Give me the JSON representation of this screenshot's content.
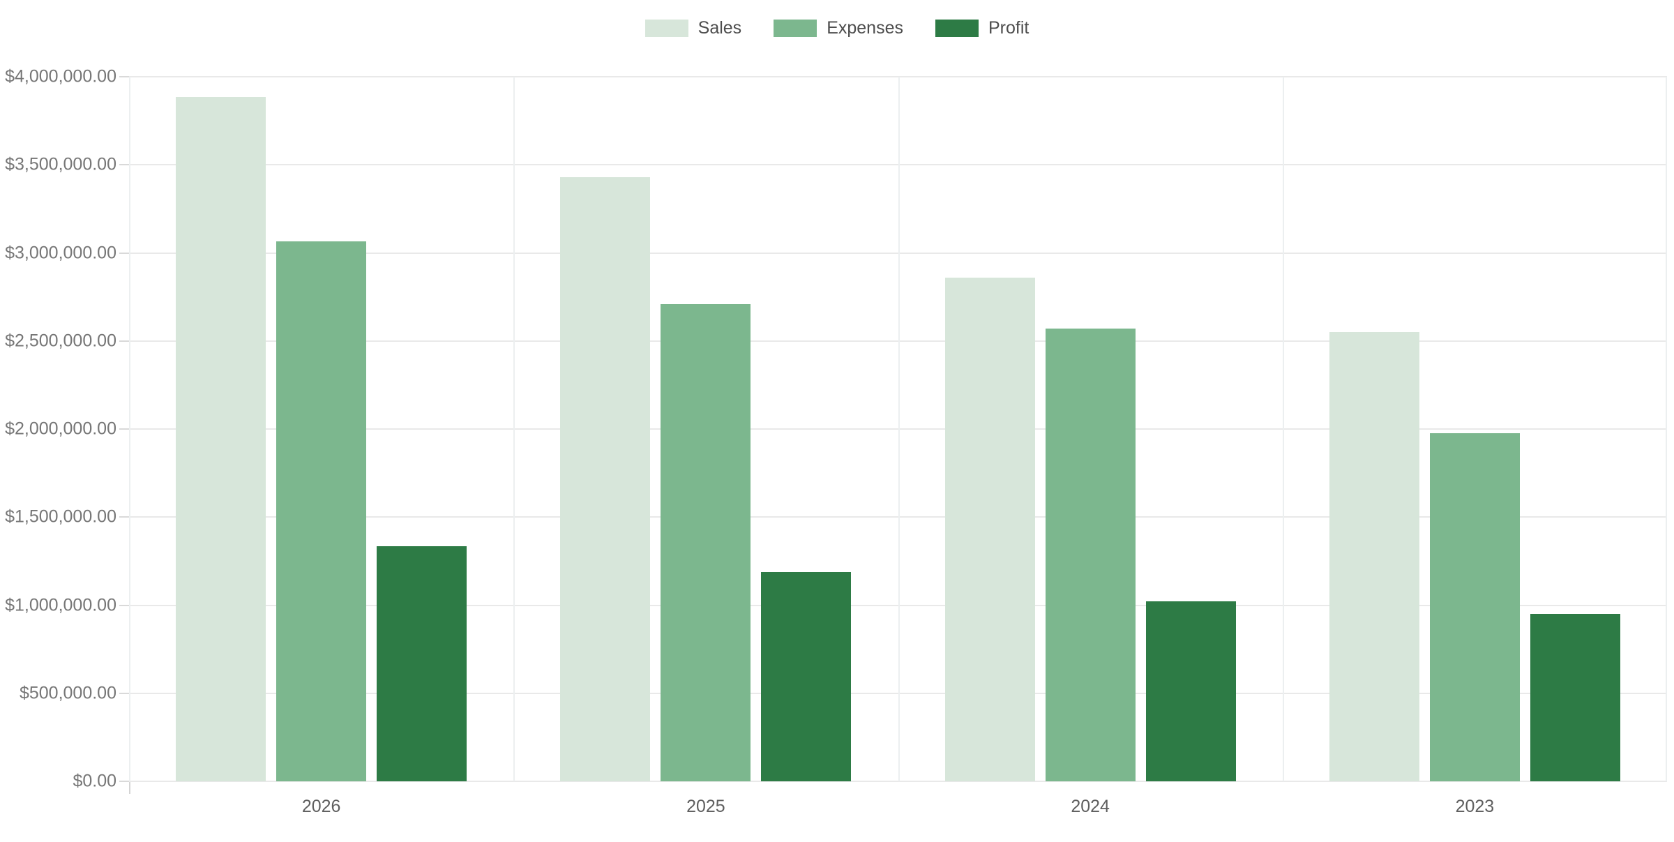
{
  "chart_data": {
    "type": "bar",
    "title": "",
    "xlabel": "",
    "ylabel": "",
    "categories": [
      "2026",
      "2025",
      "2024",
      "2023"
    ],
    "series": [
      {
        "name": "Sales",
        "color": "#d7e6da",
        "values": [
          3885000,
          3430000,
          2860000,
          2550000
        ]
      },
      {
        "name": "Expenses",
        "color": "#7cb78e",
        "values": [
          3065000,
          2710000,
          2570000,
          1975000
        ]
      },
      {
        "name": "Profit",
        "color": "#2d7b45",
        "values": [
          1335000,
          1190000,
          1020000,
          950000
        ]
      }
    ],
    "ylim": [
      0,
      4000000
    ],
    "y_tick_step": 500000,
    "y_tick_labels": [
      "$0.00",
      "$500,000.00",
      "$1,000,000.00",
      "$1,500,000.00",
      "$2,000,000.00",
      "$2,500,000.00",
      "$3,000,000.00",
      "$3,500,000.00",
      "$4,000,000.00"
    ],
    "legend_position": "top",
    "grid": true,
    "gridline_color": "#e9e9e9",
    "axis_line_color": "#d4d4d4",
    "y_label_color": "#767676",
    "x_label_color": "#5f5f5f",
    "legend_label_color": "#4d4d4d",
    "background_color": "#ffffff"
  }
}
